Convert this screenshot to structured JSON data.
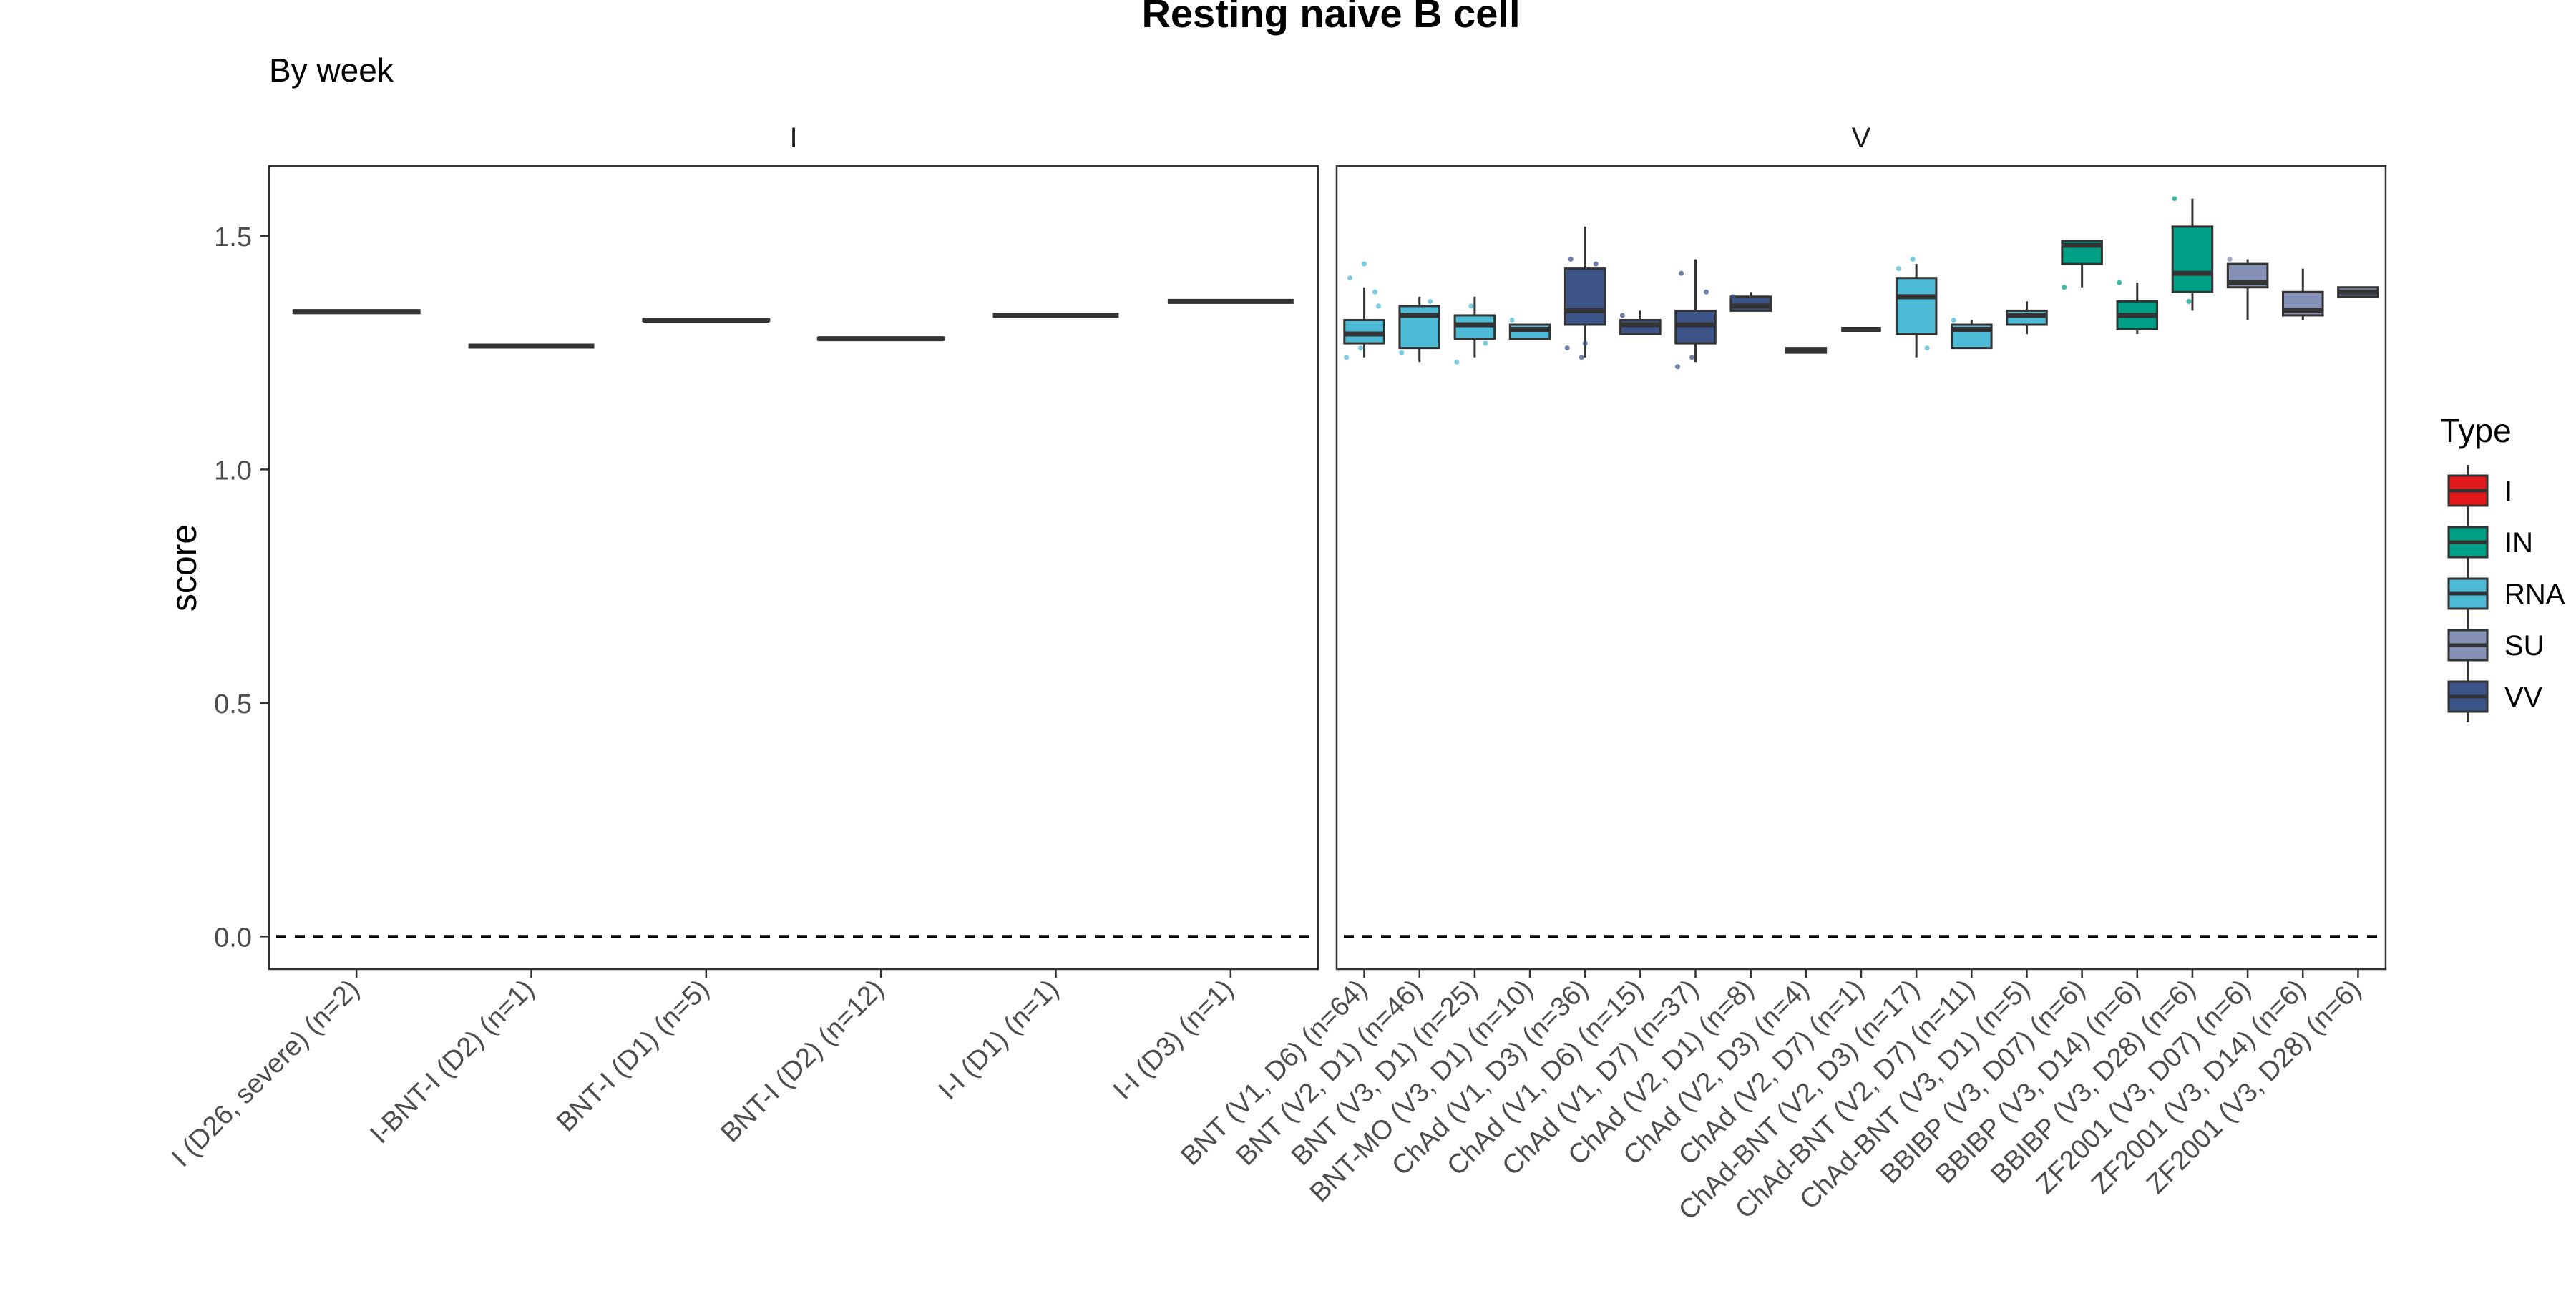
{
  "chart_data": {
    "type": "boxplot",
    "title": "Resting naive B cell",
    "subtitle": "By week",
    "xlabel": "",
    "ylabel": "score",
    "ylim": [
      -0.07,
      1.65
    ],
    "y_ticks": [
      0.0,
      0.5,
      1.0,
      1.5
    ],
    "y_tick_labels": [
      "0.0",
      "0.5",
      "1.0",
      "1.5"
    ],
    "reference_line": {
      "y": 0,
      "style": "dashed"
    },
    "grid": false,
    "legend": {
      "title": "Type",
      "position": "right",
      "entries": [
        {
          "label": "I",
          "color": "#E31A1C"
        },
        {
          "label": "IN",
          "color": "#00A087"
        },
        {
          "label": "RNA",
          "color": "#4DBBD5"
        },
        {
          "label": "SU",
          "color": "#8491B4"
        },
        {
          "label": "VV",
          "color": "#3C5488"
        }
      ]
    },
    "panels": [
      {
        "strip": "I",
        "groups": [
          {
            "label": "I (D26, severe) (n=2)",
            "type": "I",
            "q1": 1.335,
            "median": 1.338,
            "q3": 1.341,
            "lower": 1.335,
            "upper": 1.341,
            "points": []
          },
          {
            "label": "I-BNT-I (D2) (n=1)",
            "type": "I",
            "q1": 1.264,
            "median": 1.264,
            "q3": 1.264,
            "lower": 1.264,
            "upper": 1.264,
            "points": []
          },
          {
            "label": "BNT-I (D1) (n=5)",
            "type": "I",
            "q1": 1.318,
            "median": 1.32,
            "q3": 1.322,
            "lower": 1.318,
            "upper": 1.322,
            "points": []
          },
          {
            "label": "BNT-I (D2) (n=12)",
            "type": "I",
            "q1": 1.278,
            "median": 1.28,
            "q3": 1.282,
            "lower": 1.278,
            "upper": 1.282,
            "points": []
          },
          {
            "label": "I-I (D1) (n=1)",
            "type": "I",
            "q1": 1.33,
            "median": 1.33,
            "q3": 1.33,
            "lower": 1.33,
            "upper": 1.33,
            "points": []
          },
          {
            "label": "I-I (D3) (n=1)",
            "type": "I",
            "q1": 1.36,
            "median": 1.36,
            "q3": 1.36,
            "lower": 1.36,
            "upper": 1.36,
            "points": []
          }
        ]
      },
      {
        "strip": "V",
        "groups": [
          {
            "label": "BNT (V1, D6) (n=64)",
            "type": "RNA",
            "q1": 1.27,
            "median": 1.29,
            "q3": 1.32,
            "lower": 1.24,
            "upper": 1.39,
            "points": [
              1.24,
              1.26,
              1.38,
              1.41,
              1.44,
              1.35
            ]
          },
          {
            "label": "BNT (V2, D1) (n=46)",
            "type": "RNA",
            "q1": 1.26,
            "median": 1.33,
            "q3": 1.35,
            "lower": 1.23,
            "upper": 1.37,
            "points": [
              1.25,
              1.28,
              1.36,
              1.34
            ]
          },
          {
            "label": "BNT (V3, D1) (n=25)",
            "type": "RNA",
            "q1": 1.28,
            "median": 1.31,
            "q3": 1.33,
            "lower": 1.24,
            "upper": 1.37,
            "points": [
              1.23,
              1.35,
              1.27
            ]
          },
          {
            "label": "BNT-MO (V3, D1) (n=10)",
            "type": "RNA",
            "q1": 1.28,
            "median": 1.3,
            "q3": 1.31,
            "lower": 1.28,
            "upper": 1.31,
            "points": [
              1.32
            ]
          },
          {
            "label": "ChAd (V1, D3) (n=36)",
            "type": "VV",
            "q1": 1.31,
            "median": 1.34,
            "q3": 1.43,
            "lower": 1.24,
            "upper": 1.52,
            "points": [
              1.26,
              1.24,
              1.44,
              1.45,
              1.27
            ]
          },
          {
            "label": "ChAd (V1, D6) (n=15)",
            "type": "VV",
            "q1": 1.29,
            "median": 1.31,
            "q3": 1.32,
            "lower": 1.29,
            "upper": 1.34,
            "points": [
              1.33
            ]
          },
          {
            "label": "ChAd (V1, D7) (n=37)",
            "type": "VV",
            "q1": 1.27,
            "median": 1.31,
            "q3": 1.34,
            "lower": 1.23,
            "upper": 1.45,
            "points": [
              1.22,
              1.24,
              1.38,
              1.42,
              1.29
            ]
          },
          {
            "label": "ChAd (V2, D1) (n=8)",
            "type": "VV",
            "q1": 1.34,
            "median": 1.35,
            "q3": 1.37,
            "lower": 1.34,
            "upper": 1.38,
            "points": [
              1.37
            ]
          },
          {
            "label": "ChAd (V2, D3) (n=4)",
            "type": "VV",
            "q1": 1.25,
            "median": 1.255,
            "q3": 1.26,
            "lower": 1.25,
            "upper": 1.26,
            "points": []
          },
          {
            "label": "ChAd (V2, D7) (n=1)",
            "type": "VV",
            "q1": 1.3,
            "median": 1.3,
            "q3": 1.3,
            "lower": 1.3,
            "upper": 1.3,
            "points": []
          },
          {
            "label": "ChAd-BNT (V2, D3) (n=17)",
            "type": "RNA",
            "q1": 1.29,
            "median": 1.37,
            "q3": 1.41,
            "lower": 1.24,
            "upper": 1.44,
            "points": [
              1.43,
              1.45,
              1.26
            ]
          },
          {
            "label": "ChAd-BNT (V2, D7) (n=11)",
            "type": "RNA",
            "q1": 1.26,
            "median": 1.3,
            "q3": 1.31,
            "lower": 1.26,
            "upper": 1.32,
            "points": [
              1.32
            ]
          },
          {
            "label": "ChAd-BNT (V3, D1) (n=5)",
            "type": "RNA",
            "q1": 1.31,
            "median": 1.33,
            "q3": 1.34,
            "lower": 1.29,
            "upper": 1.36,
            "points": []
          },
          {
            "label": "BBIBP (V3, D07) (n=6)",
            "type": "IN",
            "q1": 1.44,
            "median": 1.48,
            "q3": 1.49,
            "lower": 1.39,
            "upper": 1.49,
            "points": [
              1.39
            ]
          },
          {
            "label": "BBIBP (V3, D14) (n=6)",
            "type": "IN",
            "q1": 1.3,
            "median": 1.33,
            "q3": 1.36,
            "lower": 1.29,
            "upper": 1.4,
            "points": [
              1.4
            ]
          },
          {
            "label": "BBIBP (V3, D28) (n=6)",
            "type": "IN",
            "q1": 1.38,
            "median": 1.42,
            "q3": 1.52,
            "lower": 1.34,
            "upper": 1.58,
            "points": [
              1.58,
              1.36
            ]
          },
          {
            "label": "ZF2001 (V3, D07) (n=6)",
            "type": "SU",
            "q1": 1.39,
            "median": 1.4,
            "q3": 1.44,
            "lower": 1.32,
            "upper": 1.45,
            "points": [
              1.45
            ]
          },
          {
            "label": "ZF2001 (V3, D14) (n=6)",
            "type": "SU",
            "q1": 1.33,
            "median": 1.34,
            "q3": 1.38,
            "lower": 1.32,
            "upper": 1.43,
            "points": []
          },
          {
            "label": "ZF2001 (V3, D28) (n=6)",
            "type": "SU",
            "q1": 1.37,
            "median": 1.38,
            "q3": 1.39,
            "lower": 1.37,
            "upper": 1.39,
            "points": []
          }
        ]
      }
    ]
  }
}
